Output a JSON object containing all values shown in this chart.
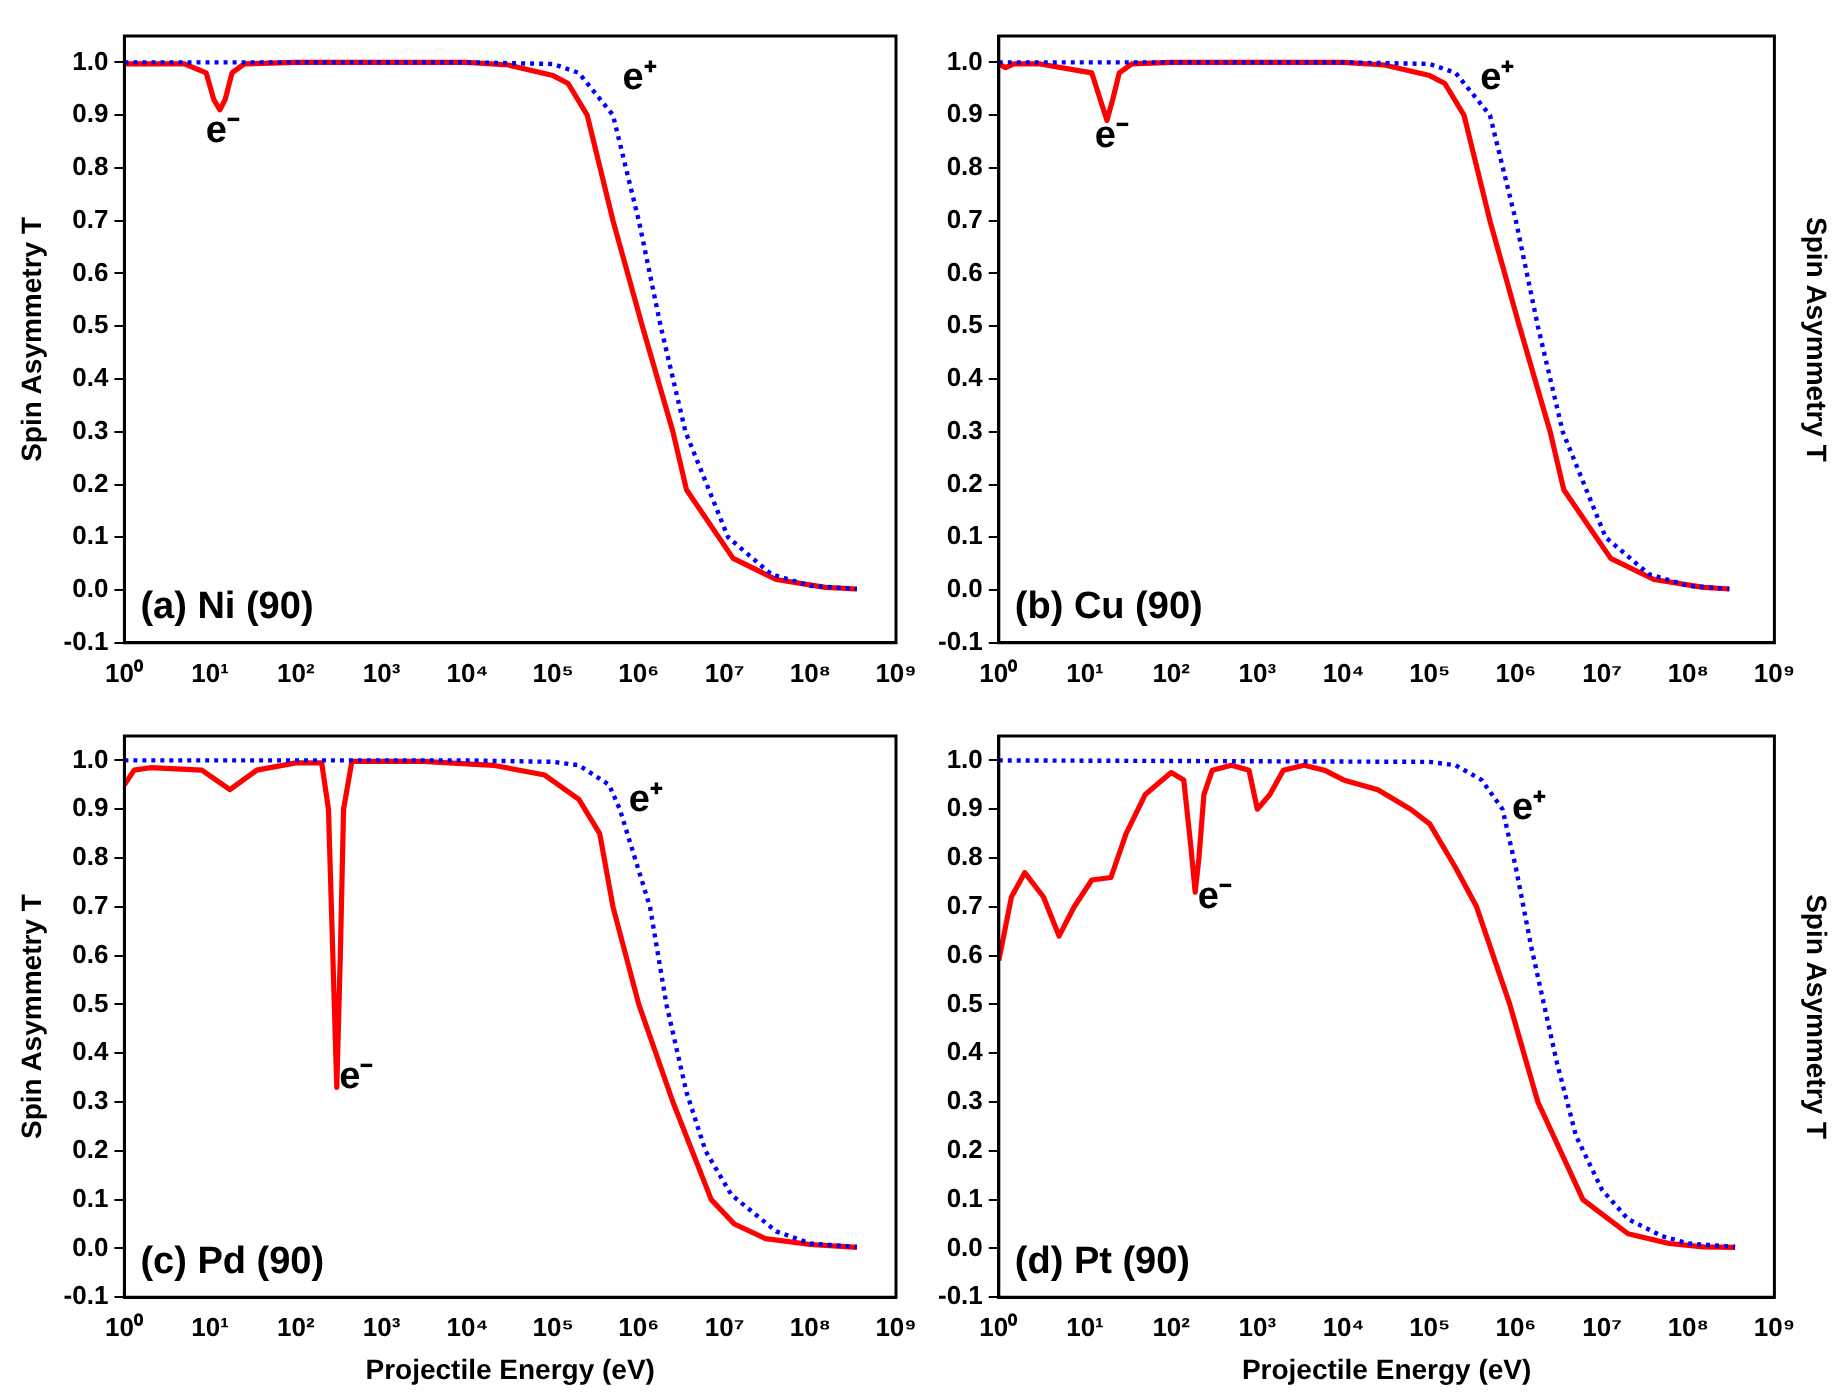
{
  "chart_data": [
    {
      "type": "line",
      "ylabel": "Spin Asymmetry T",
      "log": "x",
      "marker": "none",
      "xlim": [
        1,
        1000000000
      ],
      "ylim": [
        -0.1,
        1.05
      ],
      "xticks": [
        {
          "value": 1,
          "label": "10⁰"
        },
        {
          "value": 10,
          "label": "10¹"
        },
        {
          "value": 100,
          "label": "10²"
        },
        {
          "value": 1000,
          "label": "10³"
        },
        {
          "value": 10000,
          "label": "10⁴"
        },
        {
          "value": 100000,
          "label": "10⁵"
        },
        {
          "value": 1000000,
          "label": "10⁶"
        },
        {
          "value": 10000000,
          "label": "10⁷"
        },
        {
          "value": 100000000,
          "label": "10⁸"
        },
        {
          "value": 1000000000,
          "label": "10⁹"
        }
      ],
      "yticks": [
        {
          "value": -0.1,
          "label": "-0.1"
        },
        {
          "value": 0,
          "label": "0.0"
        },
        {
          "value": 0.1,
          "label": "0.1"
        },
        {
          "value": 0.2,
          "label": "0.2"
        },
        {
          "value": 0.3,
          "label": "0.3"
        },
        {
          "value": 0.4,
          "label": "0.4"
        },
        {
          "value": 0.5,
          "label": "0.5"
        },
        {
          "value": 0.6,
          "label": "0.6"
        },
        {
          "value": 0.7,
          "label": "0.7"
        },
        {
          "value": 0.8,
          "label": "0.8"
        },
        {
          "value": 0.9,
          "label": "0.9"
        },
        {
          "value": 1,
          "label": "1.0"
        }
      ],
      "series": [
        {
          "color": "#ff0000",
          "line_style": "solid",
          "x": [
            1,
            5,
            9,
            11,
            13,
            15,
            18,
            25,
            100,
            1000,
            10000,
            30000,
            100000,
            150000,
            250000,
            500000,
            1100000,
            2500000,
            3600000,
            12600000,
            40000000,
            150000000,
            350000000
          ],
          "values": [
            0.997,
            0.997,
            0.98,
            0.93,
            0.91,
            0.93,
            0.98,
            0.997,
            1,
            1,
            1,
            0.995,
            0.975,
            0.96,
            0.9,
            0.7,
            0.5,
            0.3,
            0.19,
            0.06,
            0.02,
            0.005,
            0.002
          ]
        },
        {
          "color": "#0000ff",
          "line_style": "dotted",
          "x": [
            1,
            10,
            100,
            1000,
            10000,
            100000,
            200000,
            500000,
            1000000,
            1800000,
            3500000,
            11000000,
            35000000,
            100000000,
            350000000
          ],
          "values": [
            1,
            1,
            1,
            1,
            1,
            0.997,
            0.98,
            0.9,
            0.7,
            0.5,
            0.3,
            0.1,
            0.03,
            0.008,
            0.002
          ]
        }
      ],
      "annotations": [
        "e⁻",
        "e⁺",
        "(a) Ni (90)"
      ]
    },
    {
      "type": "line",
      "ylabel": "Spin Asymmetry T",
      "log": "x",
      "marker": "none",
      "xlim": [
        1,
        1000000000
      ],
      "ylim": [
        -0.1,
        1.05
      ],
      "xticks": [
        {
          "value": 1,
          "label": "10⁰"
        },
        {
          "value": 10,
          "label": "10¹"
        },
        {
          "value": 100,
          "label": "10²"
        },
        {
          "value": 1000,
          "label": "10³"
        },
        {
          "value": 10000,
          "label": "10⁴"
        },
        {
          "value": 100000,
          "label": "10⁵"
        },
        {
          "value": 1000000,
          "label": "10⁶"
        },
        {
          "value": 10000000,
          "label": "10⁷"
        },
        {
          "value": 100000000,
          "label": "10⁸"
        },
        {
          "value": 1000000000,
          "label": "10⁹"
        }
      ],
      "yticks": [
        {
          "value": -0.1,
          "label": "-0.1"
        },
        {
          "value": 0,
          "label": "0.0"
        },
        {
          "value": 0.1,
          "label": "0.1"
        },
        {
          "value": 0.2,
          "label": "0.2"
        },
        {
          "value": 0.3,
          "label": "0.3"
        },
        {
          "value": 0.4,
          "label": "0.4"
        },
        {
          "value": 0.5,
          "label": "0.5"
        },
        {
          "value": 0.6,
          "label": "0.6"
        },
        {
          "value": 0.7,
          "label": "0.7"
        },
        {
          "value": 0.8,
          "label": "0.8"
        },
        {
          "value": 0.9,
          "label": "0.9"
        },
        {
          "value": 1,
          "label": "1.0"
        }
      ],
      "series": [
        {
          "color": "#ff0000",
          "line_style": "solid",
          "x": [
            1,
            1.2,
            1.5,
            3,
            12,
            15,
            18,
            21,
            25,
            35,
            100,
            1000,
            10000,
            30000,
            100000,
            150000,
            250000,
            500000,
            1100000,
            2500000,
            3600000,
            12600000,
            40000000,
            150000000,
            300000000
          ],
          "values": [
            0.997,
            0.99,
            0.997,
            0.997,
            0.98,
            0.93,
            0.89,
            0.93,
            0.98,
            0.997,
            1,
            1,
            1,
            0.995,
            0.975,
            0.96,
            0.9,
            0.7,
            0.5,
            0.3,
            0.19,
            0.06,
            0.02,
            0.005,
            0.002
          ]
        },
        {
          "color": "#0000ff",
          "line_style": "dotted",
          "x": [
            1,
            10,
            100,
            1000,
            10000,
            100000,
            200000,
            500000,
            1000000,
            1800000,
            3500000,
            11000000,
            35000000,
            100000000,
            300000000
          ],
          "values": [
            1,
            1,
            1,
            1,
            1,
            0.997,
            0.98,
            0.9,
            0.7,
            0.5,
            0.3,
            0.1,
            0.03,
            0.008,
            0.002
          ]
        }
      ],
      "annotations": [
        "e⁻",
        "e⁺",
        "(b) Cu (90)"
      ]
    },
    {
      "type": "line",
      "ylabel": "Spin Asymmetry T",
      "xlabel": "Projectile Energy (eV)",
      "log": "x",
      "marker": "none",
      "xlim": [
        1,
        1000000000
      ],
      "ylim": [
        -0.1,
        1.05
      ],
      "xticks": [
        {
          "value": 1,
          "label": "10⁰"
        },
        {
          "value": 10,
          "label": "10¹"
        },
        {
          "value": 100,
          "label": "10²"
        },
        {
          "value": 1000,
          "label": "10³"
        },
        {
          "value": 10000,
          "label": "10⁴"
        },
        {
          "value": 100000,
          "label": "10⁵"
        },
        {
          "value": 1000000,
          "label": "10⁶"
        },
        {
          "value": 10000000,
          "label": "10⁷"
        },
        {
          "value": 100000000,
          "label": "10⁸"
        },
        {
          "value": 1000000000,
          "label": "10⁹"
        }
      ],
      "yticks": [
        {
          "value": -0.1,
          "label": "-0.1"
        },
        {
          "value": 0,
          "label": "0.0"
        },
        {
          "value": 0.1,
          "label": "0.1"
        },
        {
          "value": 0.2,
          "label": "0.2"
        },
        {
          "value": 0.3,
          "label": "0.3"
        },
        {
          "value": 0.4,
          "label": "0.4"
        },
        {
          "value": 0.5,
          "label": "0.5"
        },
        {
          "value": 0.6,
          "label": "0.6"
        },
        {
          "value": 0.7,
          "label": "0.7"
        },
        {
          "value": 0.8,
          "label": "0.8"
        },
        {
          "value": 0.9,
          "label": "0.9"
        },
        {
          "value": 1,
          "label": "1.0"
        }
      ],
      "series": [
        {
          "color": "#ff0000",
          "line_style": "solid",
          "x": [
            1,
            1.3,
            2,
            8,
            17,
            35,
            100,
            200,
            240,
            270,
            300,
            330,
            360,
            450,
            3000,
            20000,
            80000,
            200000,
            350000,
            500000,
            1000000,
            2500000,
            7000000,
            13000000,
            30000000,
            100000000,
            350000000
          ],
          "values": [
            0.95,
            0.98,
            0.985,
            0.98,
            0.94,
            0.98,
            0.995,
            0.995,
            0.9,
            0.6,
            0.33,
            0.6,
            0.9,
            0.998,
            0.998,
            0.99,
            0.97,
            0.92,
            0.85,
            0.7,
            0.5,
            0.3,
            0.1,
            0.05,
            0.02,
            0.008,
            0.002
          ]
        },
        {
          "color": "#0000ff",
          "line_style": "dotted",
          "x": [
            1,
            10,
            100,
            1000,
            10000,
            100000,
            200000,
            450000,
            600000,
            1350000,
            2100000,
            3600000,
            6000000,
            12000000,
            40000000,
            100000000,
            350000000
          ],
          "values": [
            1,
            1,
            1,
            1,
            1,
            0.997,
            0.99,
            0.95,
            0.9,
            0.7,
            0.5,
            0.32,
            0.2,
            0.11,
            0.035,
            0.01,
            0.003
          ]
        }
      ],
      "annotations": [
        "e⁻",
        "e⁺",
        "(c) Pd (90)"
      ]
    },
    {
      "type": "line",
      "ylabel": "Spin Asymmetry T",
      "xlabel": "Projectile Energy (eV)",
      "log": "x",
      "marker": "none",
      "xlim": [
        1,
        1000000000
      ],
      "ylim": [
        -0.1,
        1.05
      ],
      "xticks": [
        {
          "value": 1,
          "label": "10⁰"
        },
        {
          "value": 10,
          "label": "10¹"
        },
        {
          "value": 100,
          "label": "10²"
        },
        {
          "value": 1000,
          "label": "10³"
        },
        {
          "value": 10000,
          "label": "10⁴"
        },
        {
          "value": 100000,
          "label": "10⁵"
        },
        {
          "value": 1000000,
          "label": "10⁶"
        },
        {
          "value": 10000000,
          "label": "10⁷"
        },
        {
          "value": 100000000,
          "label": "10⁸"
        },
        {
          "value": 1000000000,
          "label": "10⁹"
        }
      ],
      "yticks": [
        {
          "value": -0.1,
          "label": "-0.1"
        },
        {
          "value": 0,
          "label": "0.0"
        },
        {
          "value": 0.1,
          "label": "0.1"
        },
        {
          "value": 0.2,
          "label": "0.2"
        },
        {
          "value": 0.3,
          "label": "0.3"
        },
        {
          "value": 0.4,
          "label": "0.4"
        },
        {
          "value": 0.5,
          "label": "0.5"
        },
        {
          "value": 0.6,
          "label": "0.6"
        },
        {
          "value": 0.7,
          "label": "0.7"
        },
        {
          "value": 0.8,
          "label": "0.8"
        },
        {
          "value": 0.9,
          "label": "0.9"
        },
        {
          "value": 1,
          "label": "1.0"
        }
      ],
      "series": [
        {
          "color": "#ff0000",
          "line_style": "solid",
          "x": [
            1,
            1.4,
            2,
            3.3,
            5,
            7.5,
            12,
            20,
            30,
            50,
            100,
            140,
            170,
            190,
            210,
            240,
            300,
            500,
            800,
            1000,
            1400,
            2000,
            3500,
            6000,
            10000,
            25000,
            60000,
            100000,
            200000,
            350000,
            850000,
            1800000,
            6000000,
            20000000,
            60000000,
            150000000,
            350000000
          ],
          "values": [
            0.59,
            0.72,
            0.77,
            0.72,
            0.64,
            0.7,
            0.755,
            0.76,
            0.85,
            0.93,
            0.975,
            0.96,
            0.82,
            0.73,
            0.8,
            0.93,
            0.98,
            0.99,
            0.98,
            0.9,
            0.93,
            0.98,
            0.99,
            0.98,
            0.96,
            0.94,
            0.9,
            0.87,
            0.78,
            0.7,
            0.5,
            0.3,
            0.1,
            0.03,
            0.01,
            0.003,
            0.002
          ]
        },
        {
          "color": "#0000ff",
          "line_style": "dotted",
          "x": [
            1,
            100000,
            200000,
            400000,
            700000,
            1000000,
            1500000,
            2000000,
            3000000,
            5000000,
            10000000,
            20000000,
            50000000,
            100000000,
            350000000
          ],
          "values": [
            1,
            0.997,
            0.99,
            0.96,
            0.9,
            0.78,
            0.62,
            0.52,
            0.38,
            0.23,
            0.12,
            0.06,
            0.025,
            0.01,
            0.003
          ]
        }
      ],
      "annotations": [
        "e⁻",
        "e⁺",
        "(d) Pt (90)"
      ]
    }
  ]
}
